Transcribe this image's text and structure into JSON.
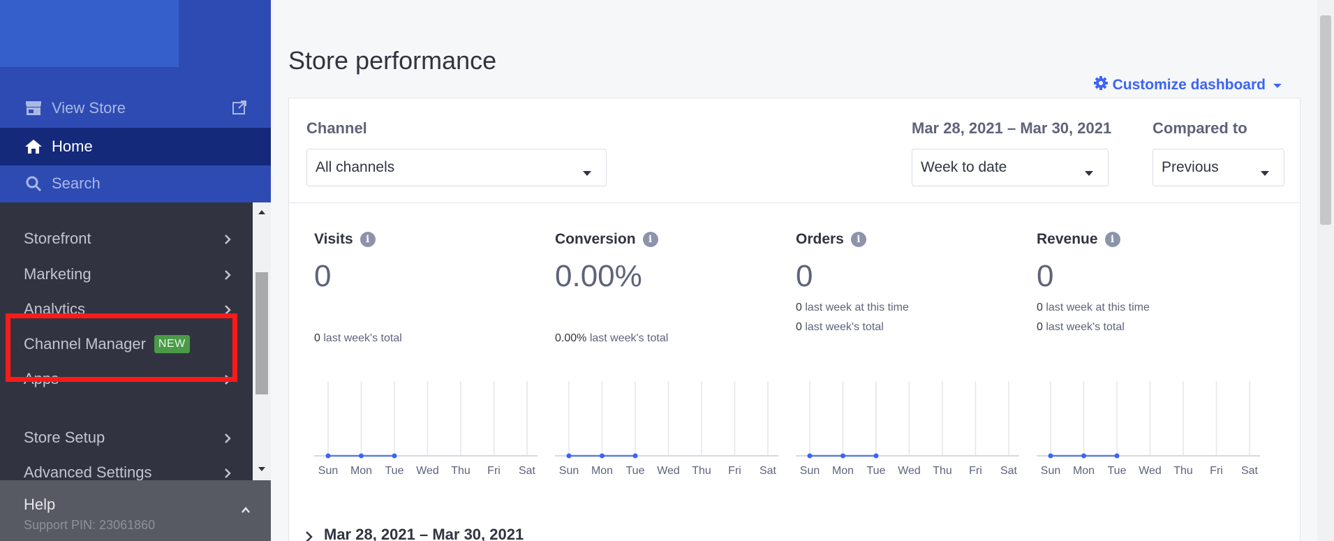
{
  "sidebar": {
    "view_store": "View Store",
    "home": "Home",
    "search": "Search",
    "menu": [
      {
        "label": "Storefront"
      },
      {
        "label": "Marketing"
      },
      {
        "label": "Analytics"
      },
      {
        "label": "Channel Manager",
        "badge": "NEW"
      },
      {
        "label": "Apps"
      },
      {
        "label": "Store Setup"
      },
      {
        "label": "Advanced Settings"
      }
    ],
    "help_title": "Help",
    "support_pin": "Support PIN: 23061860"
  },
  "main": {
    "title": "Store performance",
    "customize": "Customize dashboard",
    "filters": {
      "channel_label": "Channel",
      "channel_value": "All channels",
      "date_label": "Mar 28, 2021 – Mar 30, 2021",
      "date_value": "Week to date",
      "compare_label": "Compared to",
      "compare_value": "Previous"
    },
    "metrics": [
      {
        "title": "Visits",
        "value": "0",
        "prev_total_num": "0",
        "prev_total_text": "last week's total",
        "this_time_num": "",
        "this_time_text": ""
      },
      {
        "title": "Conversion",
        "value": "0.00%",
        "prev_total_num": "0.00%",
        "prev_total_text": "last week's total",
        "this_time_num": "",
        "this_time_text": ""
      },
      {
        "title": "Orders",
        "value": "0",
        "prev_total_num": "0",
        "prev_total_text": "last week's total",
        "this_time_num": "0",
        "this_time_text": "last week at this time"
      },
      {
        "title": "Revenue",
        "value": "0",
        "prev_total_num": "0",
        "prev_total_text": "last week's total",
        "this_time_num": "0",
        "this_time_text": "last week at this time"
      }
    ],
    "days": [
      "Sun",
      "Mon",
      "Tue",
      "Wed",
      "Thu",
      "Fri",
      "Sat"
    ],
    "bottom_range": "Mar 28, 2021 – Mar 30, 2021"
  },
  "colors": {
    "accent": "#3c64f4",
    "sidebar_top": "#2d4bb2",
    "sidebar_active": "#14297a",
    "sidebar_menu": "#313440",
    "highlight": "#ff1a1a",
    "badge": "#4a9a48"
  },
  "chart_data": [
    {
      "type": "line",
      "title": "Visits",
      "x": [
        "Sun",
        "Mon",
        "Tue"
      ],
      "values": [
        0,
        0,
        0
      ]
    },
    {
      "type": "line",
      "title": "Conversion",
      "x": [
        "Sun",
        "Mon",
        "Tue"
      ],
      "values": [
        0,
        0,
        0
      ]
    },
    {
      "type": "line",
      "title": "Orders",
      "x": [
        "Sun",
        "Mon",
        "Tue"
      ],
      "values": [
        0,
        0,
        0
      ]
    },
    {
      "type": "line",
      "title": "Revenue",
      "x": [
        "Sun",
        "Mon",
        "Tue"
      ],
      "values": [
        0,
        0,
        0
      ]
    }
  ]
}
